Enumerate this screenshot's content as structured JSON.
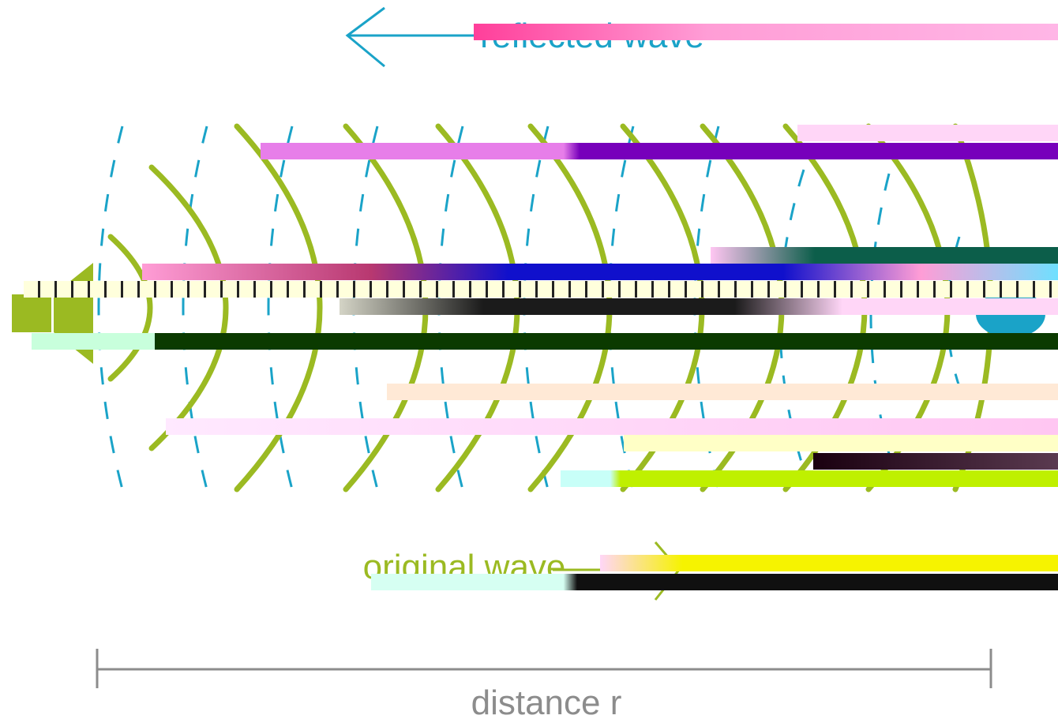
{
  "labels": {
    "reflected": "reflected wave",
    "original": "original wave",
    "distance": "distance r"
  },
  "colors": {
    "original_wave": "#9bba22",
    "reflected_wave": "#1aa3c8",
    "distance_bar": "#8c8c8c",
    "background": "#ffffff",
    "artifact_magenta": "#e77ee9",
    "artifact_purple": "#7700bb",
    "artifact_dark": "#0b3a00",
    "artifact_blue": "#1010cc",
    "artifact_yellow": "#f6f300",
    "artifact_lime": "#bff000",
    "artifact_pink": "#ff9dd6",
    "artifact_cream": "#ffe9d6"
  },
  "icons": {
    "source": "speaker-icon",
    "target": "sphere-icon"
  }
}
